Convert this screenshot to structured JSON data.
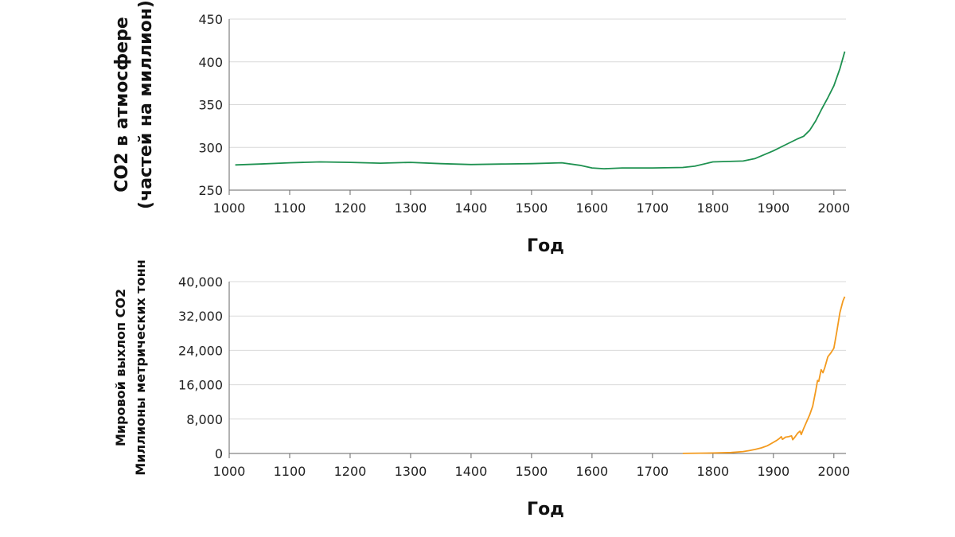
{
  "chart_data": [
    {
      "type": "line",
      "title": "",
      "xlabel": "Год",
      "ylabel_lines": [
        "CO2 в атмосфере",
        "(частей на миллион)"
      ],
      "xlim": [
        1000,
        2020
      ],
      "ylim": [
        250,
        450
      ],
      "xticks": [
        1000,
        1100,
        1200,
        1300,
        1400,
        1500,
        1600,
        1700,
        1800,
        1900,
        2000
      ],
      "yticks": [
        250,
        300,
        350,
        400,
        450
      ],
      "ytick_labels": [
        "250",
        "300",
        "350",
        "400",
        "450"
      ],
      "grid": "horizontal",
      "series": [
        {
          "color": "#1e9150",
          "x": [
            1010,
            1050,
            1100,
            1150,
            1200,
            1250,
            1300,
            1350,
            1400,
            1450,
            1500,
            1550,
            1580,
            1600,
            1620,
            1650,
            1700,
            1750,
            1770,
            1800,
            1850,
            1870,
            1900,
            1920,
            1940,
            1950,
            1960,
            1970,
            1980,
            1990,
            2000,
            2010,
            2018
          ],
          "y": [
            279.5,
            280.5,
            282,
            283,
            282.5,
            281.5,
            282.5,
            281,
            280,
            280.5,
            281,
            282,
            279,
            276,
            275,
            276,
            276,
            276.5,
            278,
            283,
            284,
            287,
            296,
            303,
            310,
            313,
            320,
            331,
            345,
            358,
            372,
            392,
            412
          ]
        }
      ]
    },
    {
      "type": "line",
      "title": "",
      "xlabel": "Год",
      "ylabel_lines": [
        "Мировой выхлоп CO2",
        "Миллионы метрических тонн"
      ],
      "xlim": [
        1000,
        2020
      ],
      "ylim": [
        0,
        40000
      ],
      "xticks": [
        1000,
        1100,
        1200,
        1300,
        1400,
        1500,
        1600,
        1700,
        1800,
        1900,
        2000
      ],
      "yticks": [
        0,
        8000,
        16000,
        24000,
        32000,
        40000
      ],
      "ytick_labels": [
        "0",
        "8,000",
        "16,000",
        "24,000",
        "32,000",
        "40,000"
      ],
      "grid": "horizontal",
      "series": [
        {
          "color": "#f39a1e",
          "x": [
            1750,
            1800,
            1830,
            1850,
            1860,
            1870,
            1880,
            1890,
            1900,
            1905,
            1910,
            1913,
            1915,
            1918,
            1920,
            1925,
            1930,
            1932,
            1935,
            1940,
            1944,
            1946,
            1950,
            1955,
            1960,
            1965,
            1970,
            1973,
            1975,
            1979,
            1982,
            1985,
            1990,
            1995,
            2000,
            2005,
            2010,
            2015,
            2018
          ],
          "y": [
            20,
            110,
            220,
            450,
            660,
            950,
            1300,
            1800,
            2600,
            3000,
            3500,
            3900,
            3300,
            3600,
            3800,
            3900,
            4100,
            3200,
            3700,
            4700,
            5200,
            4400,
            5800,
            7400,
            9000,
            11000,
            14600,
            17000,
            16800,
            19500,
            18800,
            20000,
            22500,
            23400,
            24500,
            28500,
            32800,
            35500,
            36500
          ]
        }
      ]
    }
  ]
}
